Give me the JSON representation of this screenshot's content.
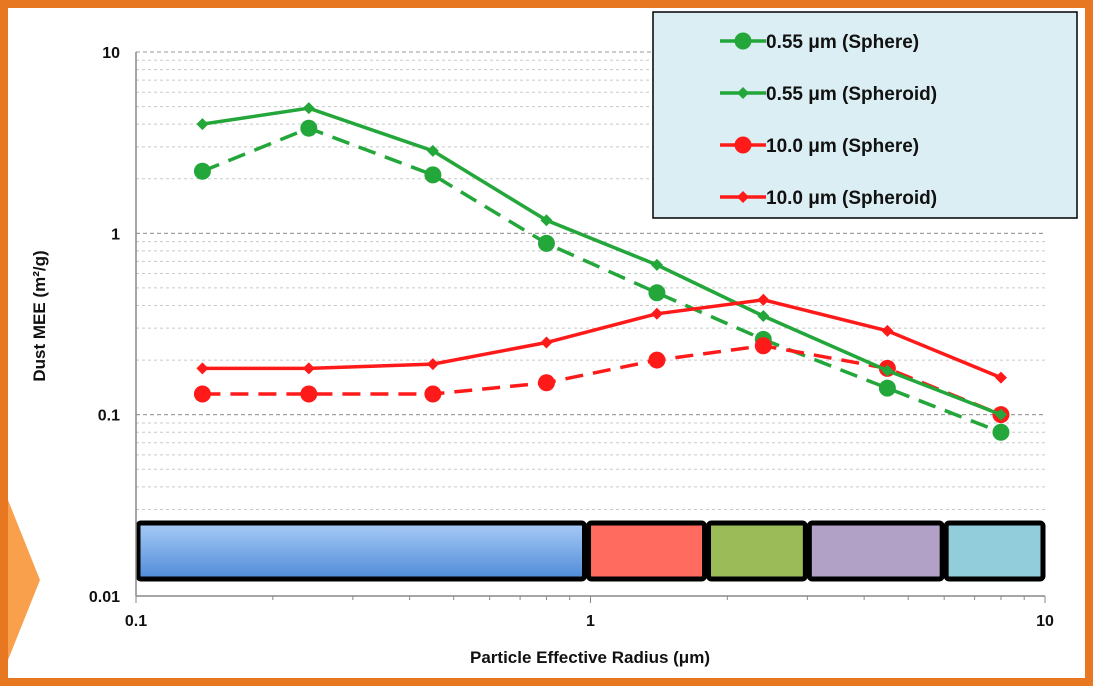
{
  "frame_color": "#e87722",
  "chart_data": {
    "type": "line",
    "x_scale": "log",
    "y_scale": "log",
    "xlim": [
      0.1,
      10
    ],
    "ylim": [
      0.01,
      10
    ],
    "xlabel": "Particle Effective Radius (μm)",
    "ylabel": "Dust MEE (m²/g)",
    "x_ticks": [
      "0.1",
      "1",
      "10"
    ],
    "y_ticks": [
      "0.01",
      "0.1",
      "1",
      "10"
    ],
    "grid": "horizontal minor gridlines",
    "legend_position": "top-right",
    "series": [
      {
        "name": "0.55 μm (Sphere)",
        "color": "#23a63a",
        "marker": "circle",
        "line_style": "dashed",
        "x": [
          0.14,
          0.24,
          0.45,
          0.8,
          1.4,
          2.4,
          4.5,
          8.0
        ],
        "y": [
          2.2,
          3.8,
          2.1,
          0.88,
          0.47,
          0.26,
          0.14,
          0.08
        ]
      },
      {
        "name": "0.55 μm (Spheroid)",
        "color": "#23a63a",
        "marker": "diamond",
        "line_style": "solid",
        "x": [
          0.14,
          0.24,
          0.45,
          0.8,
          1.4,
          2.4,
          4.5,
          8.0
        ],
        "y": [
          4.0,
          4.9,
          2.85,
          1.18,
          0.67,
          0.35,
          0.175,
          0.1
        ]
      },
      {
        "name": "10.0 μm (Sphere)",
        "color": "#ff1a1a",
        "marker": "circle",
        "line_style": "dashed",
        "x": [
          0.14,
          0.24,
          0.45,
          0.8,
          1.4,
          2.4,
          4.5,
          8.0
        ],
        "y": [
          0.13,
          0.13,
          0.13,
          0.15,
          0.2,
          0.24,
          0.18,
          0.1
        ]
      },
      {
        "name": "10.0 μm (Spheroid)",
        "color": "#ff1a1a",
        "marker": "diamond",
        "line_style": "solid",
        "x": [
          0.14,
          0.24,
          0.45,
          0.8,
          1.4,
          2.4,
          4.5,
          8.0
        ],
        "y": [
          0.18,
          0.18,
          0.19,
          0.25,
          0.36,
          0.43,
          0.29,
          0.16
        ]
      }
    ],
    "size_bins": [
      {
        "x_start": 0.1,
        "x_end": 0.98,
        "color": "#7fb0ee"
      },
      {
        "x_start": 0.98,
        "x_end": 1.8,
        "color": "#ff6b5e"
      },
      {
        "x_start": 1.8,
        "x_end": 3.0,
        "color": "#9bbb59"
      },
      {
        "x_start": 3.0,
        "x_end": 6.0,
        "color": "#b2a1c7"
      },
      {
        "x_start": 6.0,
        "x_end": 10.0,
        "color": "#92cddc"
      }
    ]
  }
}
